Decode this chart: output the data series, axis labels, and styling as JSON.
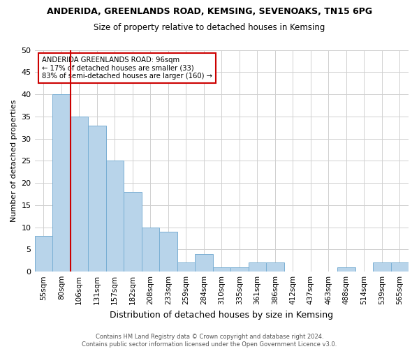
{
  "title": "ANDERIDA, GREENLANDS ROAD, KEMSING, SEVENOAKS, TN15 6PG",
  "subtitle": "Size of property relative to detached houses in Kemsing",
  "xlabel": "Distribution of detached houses by size in Kemsing",
  "ylabel": "Number of detached properties",
  "categories": [
    "55sqm",
    "80sqm",
    "106sqm",
    "131sqm",
    "157sqm",
    "182sqm",
    "208sqm",
    "233sqm",
    "259sqm",
    "284sqm",
    "310sqm",
    "335sqm",
    "361sqm",
    "386sqm",
    "412sqm",
    "437sqm",
    "463sqm",
    "488sqm",
    "514sqm",
    "539sqm",
    "565sqm"
  ],
  "values": [
    8,
    40,
    35,
    33,
    25,
    18,
    10,
    9,
    2,
    4,
    1,
    1,
    2,
    2,
    0,
    0,
    0,
    1,
    0,
    2,
    2
  ],
  "bar_color": "#b8d4ea",
  "bar_edge_color": "#7aafd4",
  "vline_color": "#cc0000",
  "vline_x_idx": 1.5,
  "ylim": [
    0,
    50
  ],
  "yticks": [
    0,
    5,
    10,
    15,
    20,
    25,
    30,
    35,
    40,
    45,
    50
  ],
  "annotation_text": "ANDERIDA GREENLANDS ROAD: 96sqm\n← 17% of detached houses are smaller (33)\n83% of semi-detached houses are larger (160) →",
  "annotation_box_color": "#ffffff",
  "annotation_box_edge_color": "#cc0000",
  "footnote": "Contains HM Land Registry data © Crown copyright and database right 2024.\nContains public sector information licensed under the Open Government Licence v3.0.",
  "background_color": "#ffffff",
  "grid_color": "#d0d0d0"
}
